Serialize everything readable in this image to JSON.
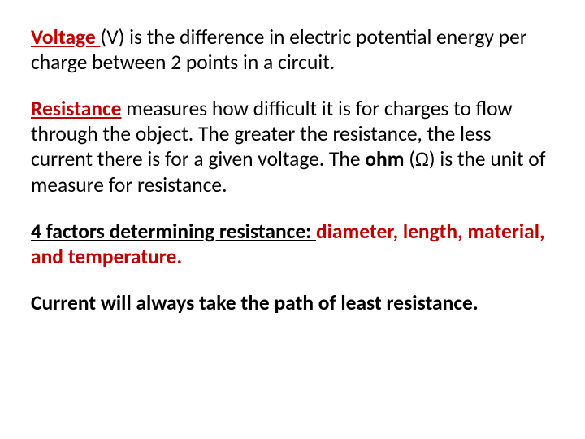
{
  "colors": {
    "term_red": "#c00000",
    "text_black": "#000000",
    "background": "#ffffff"
  },
  "typography": {
    "font_family": "Calibri",
    "body_fontsize_pt": 19,
    "line_height": 1.22
  },
  "para1": {
    "term": "Voltage ",
    "rest": "(V) is the difference in electric potential energy per charge between 2 points in a circuit."
  },
  "para2": {
    "term": "Resistance",
    "rest1": " measures how difficult it is for charges to flow through the object.  The greater the resistance, the less current there is for a given voltage.  The ",
    "ohm": "ohm",
    "rest2": " (Ω) is the unit of measure for resistance."
  },
  "para3": {
    "heading": "4 factors determining resistance:  ",
    "rest": "diameter, length, material, and temperature."
  },
  "para4": {
    "text": "Current will always take the path of least resistance."
  }
}
